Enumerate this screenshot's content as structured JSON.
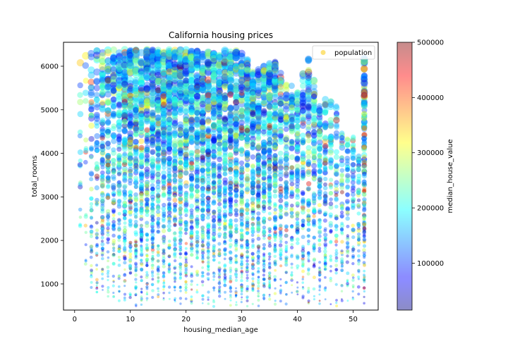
{
  "figure": {
    "title": "California housing prices",
    "xlabel": "housing_median_age",
    "ylabel": "total_rooms",
    "legend_label": "population",
    "colorbar_label": "median_house_value"
  },
  "chart_data": {
    "type": "scatter",
    "title": "California housing prices",
    "xlabel": "housing_median_age",
    "ylabel": "total_rooms",
    "xlim": [
      -2,
      54.5
    ],
    "ylim": [
      400,
      6550
    ],
    "xticks": [
      0,
      10,
      20,
      30,
      40,
      50
    ],
    "yticks": [
      1000,
      2000,
      3000,
      4000,
      5000,
      6000
    ],
    "x_values": "integer ages 1–52",
    "grid": false,
    "legend": {
      "entries": [
        "population"
      ],
      "placement": "top-right",
      "marker_color": "#fde37a"
    },
    "marker_size_encodes": "population",
    "color_encodes": "median_house_value",
    "colormap": "jet",
    "marker_alpha": 0.4,
    "colorbar": {
      "label": "median_house_value",
      "range": [
        15000,
        500000
      ],
      "ticks": [
        100000,
        200000,
        300000,
        400000,
        500000
      ]
    },
    "upper_envelope": [
      [
        1,
        6300
      ],
      [
        2,
        6350
      ],
      [
        4,
        6380
      ],
      [
        10,
        6380
      ],
      [
        20,
        6380
      ],
      [
        25,
        6370
      ],
      [
        28,
        6360
      ],
      [
        30,
        6350
      ],
      [
        32,
        5950
      ],
      [
        34,
        6050
      ],
      [
        36,
        6100
      ],
      [
        38,
        5600
      ],
      [
        40,
        5500
      ],
      [
        42,
        6300
      ],
      [
        44,
        5200
      ],
      [
        46,
        5300
      ],
      [
        47,
        5100
      ],
      [
        48,
        4500
      ],
      [
        49,
        4350
      ],
      [
        50,
        4400
      ],
      [
        51,
        3950
      ],
      [
        52,
        6200
      ]
    ]
  }
}
